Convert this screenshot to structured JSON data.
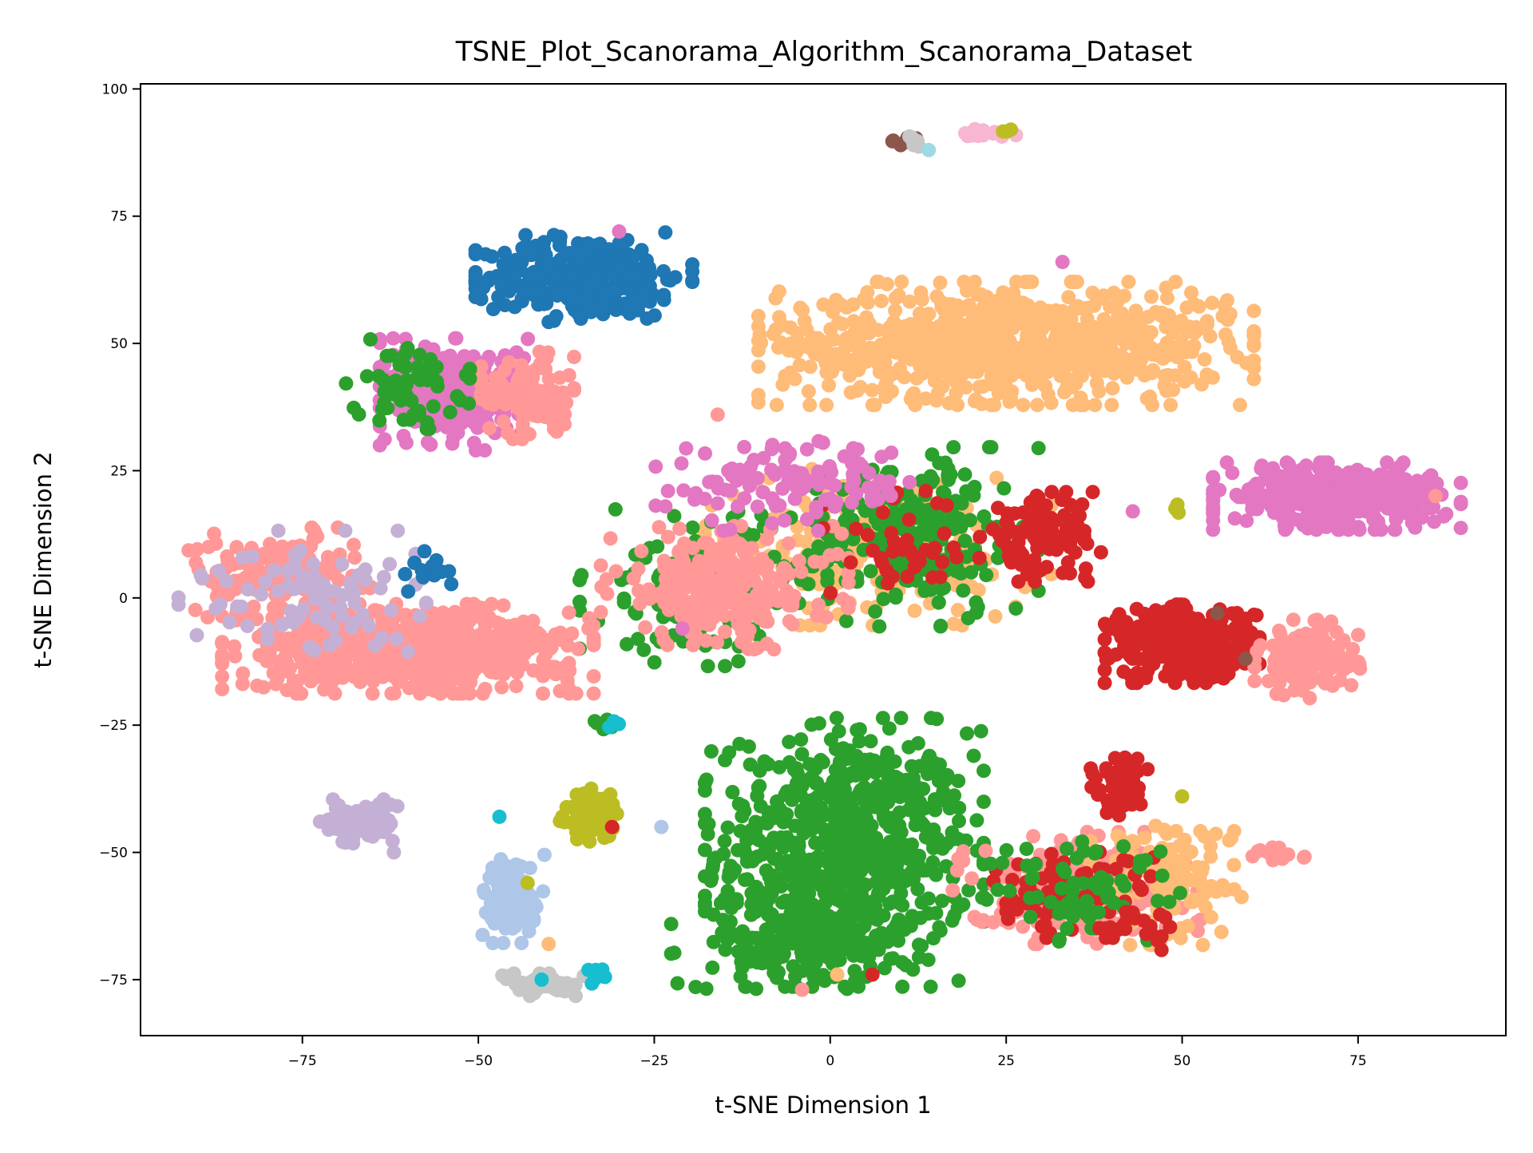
{
  "chart_data": {
    "type": "scatter",
    "title": "TSNE_Plot_Scanorama_Algorithm_Scanorama_Dataset",
    "xlabel": "t-SNE Dimension 1",
    "ylabel": "t-SNE Dimension 2",
    "xlim": [
      -98,
      96
    ],
    "ylim": [
      -86,
      101
    ],
    "x_ticks": [
      -75,
      -50,
      -25,
      0,
      25,
      50,
      75
    ],
    "y_ticks": [
      -75,
      -50,
      -25,
      0,
      25,
      50,
      75,
      100
    ],
    "x_tick_labels": [
      "−75",
      "−50",
      "−25",
      "0",
      "25",
      "50",
      "75"
    ],
    "y_tick_labels": [
      "−75",
      "−50",
      "−25",
      "0",
      "25",
      "50",
      "75",
      "100"
    ],
    "grid": false,
    "legend": "none",
    "palette": {
      "blue": "#1f77b4",
      "light_blue": "#aec7e8",
      "orange": "#ffbb78",
      "green": "#2ca02c",
      "red": "#d62728",
      "pink": "#ff9896",
      "lavender": "#c5b0d5",
      "brown": "#8c564b",
      "magenta": "#e377c2",
      "light_pink": "#f7b6d2",
      "grey": "#c7c7c7",
      "olive": "#bcbd22",
      "cyan": "#17becf",
      "light_cyan": "#9edae5"
    },
    "clusters": [
      {
        "color": "green",
        "cx": 2,
        "cy": -50,
        "sx": 9,
        "sy": 12,
        "n": 700
      },
      {
        "color": "green",
        "cx": -5,
        "cy": -68,
        "sx": 8,
        "sy": 4,
        "n": 150
      },
      {
        "color": "blue",
        "cx": -35,
        "cy": 63,
        "sx": 7,
        "sy": 4,
        "n": 320
      },
      {
        "color": "orange",
        "cx": 25,
        "cy": 50,
        "sx": 16,
        "sy": 5.5,
        "n": 800
      },
      {
        "color": "orange",
        "cx": 5,
        "cy": 10,
        "sx": 12,
        "sy": 7,
        "n": 220
      },
      {
        "color": "green",
        "cx": 12,
        "cy": 12,
        "sx": 8,
        "sy": 8,
        "n": 240
      },
      {
        "color": "green",
        "cx": -18,
        "cy": 2,
        "sx": 8,
        "sy": 7,
        "n": 140
      },
      {
        "color": "pink",
        "cx": -15,
        "cy": 2,
        "sx": 8,
        "sy": 5.5,
        "n": 240
      },
      {
        "color": "red",
        "cx": 30,
        "cy": 12,
        "sx": 4,
        "sy": 4,
        "n": 110
      },
      {
        "color": "red",
        "cx": 10,
        "cy": 10,
        "sx": 5,
        "sy": 5,
        "n": 40
      },
      {
        "color": "magenta",
        "cx": -5,
        "cy": 22,
        "sx": 9,
        "sy": 4,
        "n": 110
      },
      {
        "color": "magenta",
        "cx": 72,
        "cy": 20,
        "sx": 8,
        "sy": 3,
        "n": 340
      },
      {
        "color": "red",
        "cx": 50,
        "cy": -9,
        "sx": 5,
        "sy": 3.5,
        "n": 380
      },
      {
        "color": "pink",
        "cx": 68,
        "cy": -12,
        "sx": 3.5,
        "sy": 3.5,
        "n": 120
      },
      {
        "color": "pink",
        "cx": -60,
        "cy": -10,
        "sx": 12,
        "sy": 4,
        "n": 650
      },
      {
        "color": "pink",
        "cx": -78,
        "cy": 5,
        "sx": 6,
        "sy": 4,
        "n": 140
      },
      {
        "color": "lavender",
        "cx": -75,
        "cy": 0,
        "sx": 8,
        "sy": 6,
        "n": 90
      },
      {
        "color": "magenta",
        "cx": -53,
        "cy": 40,
        "sx": 5,
        "sy": 5,
        "n": 280
      },
      {
        "color": "pink",
        "cx": -43,
        "cy": 40,
        "sx": 3,
        "sy": 4,
        "n": 110
      },
      {
        "color": "green",
        "cx": -60,
        "cy": 42,
        "sx": 4,
        "sy": 4,
        "n": 60
      },
      {
        "color": "pink",
        "cx": 35,
        "cy": -57,
        "sx": 8,
        "sy": 5,
        "n": 230
      },
      {
        "color": "orange",
        "cx": 48,
        "cy": -55,
        "sx": 5,
        "sy": 6,
        "n": 120
      },
      {
        "color": "red",
        "cx": 33,
        "cy": -58,
        "sx": 6,
        "sy": 4,
        "n": 90
      },
      {
        "color": "green",
        "cx": 37,
        "cy": -58,
        "sx": 7,
        "sy": 5,
        "n": 70
      },
      {
        "color": "red",
        "cx": 41,
        "cy": -37,
        "sx": 2,
        "sy": 3,
        "n": 50
      },
      {
        "color": "lavender",
        "cx": -67,
        "cy": -44,
        "sx": 2.5,
        "sy": 2,
        "n": 100
      },
      {
        "color": "light_blue",
        "cx": -45,
        "cy": -59,
        "sx": 2,
        "sy": 4,
        "n": 130
      },
      {
        "color": "olive",
        "cx": -34,
        "cy": -43,
        "sx": 2,
        "sy": 2.5,
        "n": 90
      },
      {
        "color": "grey",
        "cx": -40,
        "cy": -76,
        "sx": 3,
        "sy": 1,
        "n": 50
      },
      {
        "color": "cyan",
        "cx": -33,
        "cy": -74,
        "sx": 1,
        "sy": 0.8,
        "n": 8
      },
      {
        "color": "green",
        "cx": -32,
        "cy": -25,
        "sx": 1,
        "sy": 0.6,
        "n": 8
      },
      {
        "color": "cyan",
        "cx": -31,
        "cy": -25,
        "sx": 0.6,
        "sy": 0.5,
        "n": 3
      },
      {
        "color": "light_pink",
        "cx": 22,
        "cy": 91,
        "sx": 2,
        "sy": 0.6,
        "n": 20
      },
      {
        "color": "brown",
        "cx": 10,
        "cy": 90,
        "sx": 1,
        "sy": 0.6,
        "n": 6
      },
      {
        "color": "grey",
        "cx": 11,
        "cy": 90,
        "sx": 0.8,
        "sy": 0.6,
        "n": 6
      },
      {
        "color": "olive",
        "cx": 25,
        "cy": 92,
        "sx": 0.5,
        "sy": 0.4,
        "n": 3
      },
      {
        "color": "olive",
        "cx": 49,
        "cy": 17,
        "sx": 0.5,
        "sy": 0.6,
        "n": 3
      },
      {
        "color": "blue",
        "cx": -56,
        "cy": 5,
        "sx": 2,
        "sy": 2,
        "n": 14
      },
      {
        "color": "pink",
        "cx": 63,
        "cy": -50,
        "sx": 2,
        "sy": 1,
        "n": 14
      },
      {
        "color": "red",
        "cx": 45,
        "cy": -65,
        "sx": 4,
        "sy": 2,
        "n": 22
      }
    ],
    "outliers": [
      {
        "x": 14,
        "y": 88,
        "color": "light_cyan"
      },
      {
        "x": -24,
        "y": -45,
        "color": "light_blue"
      },
      {
        "x": -47,
        "y": -43,
        "color": "cyan"
      },
      {
        "x": -41,
        "y": -75,
        "color": "cyan"
      },
      {
        "x": -31,
        "y": -45,
        "color": "red"
      },
      {
        "x": 50,
        "y": -39,
        "color": "olive"
      },
      {
        "x": 43,
        "y": 17,
        "color": "magenta"
      },
      {
        "x": -16,
        "y": 36,
        "color": "pink"
      },
      {
        "x": -21,
        "y": -6,
        "color": "magenta"
      },
      {
        "x": 33,
        "y": 66,
        "color": "magenta"
      },
      {
        "x": 1,
        "y": -74,
        "color": "orange"
      },
      {
        "x": -4,
        "y": -77,
        "color": "pink"
      },
      {
        "x": 6,
        "y": -74,
        "color": "red"
      },
      {
        "x": 55,
        "y": -3,
        "color": "brown"
      },
      {
        "x": 59,
        "y": -12,
        "color": "brown"
      },
      {
        "x": -62,
        "y": -50,
        "color": "lavender"
      },
      {
        "x": -40,
        "y": -68,
        "color": "orange"
      },
      {
        "x": -43,
        "y": -56,
        "color": "olive"
      },
      {
        "x": -30,
        "y": 72,
        "color": "magenta"
      },
      {
        "x": 86,
        "y": 20,
        "color": "pink"
      }
    ]
  }
}
